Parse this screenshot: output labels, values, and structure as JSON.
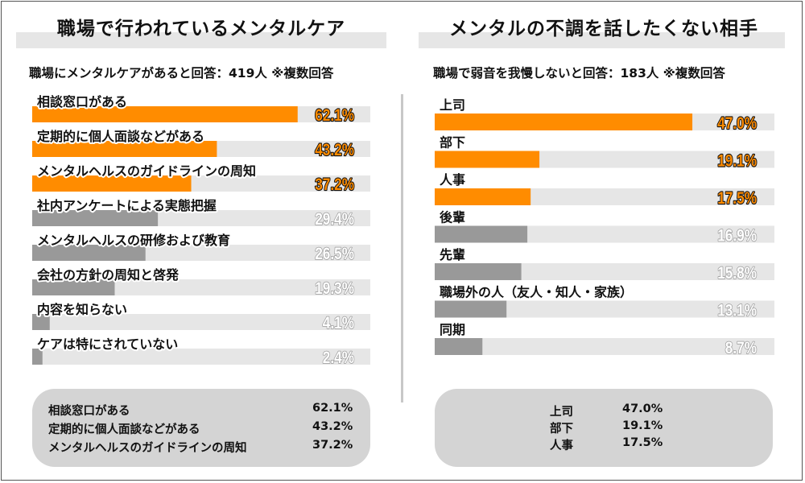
{
  "colors": {
    "highlight": "#ff8c00",
    "bar_gray": "#999999",
    "track": "#e6e6e6",
    "value_orange_fill": "#ff8c00",
    "value_gray_fill": "#ffffff",
    "value_gray_stroke": "#9a9a9a"
  },
  "chart_data": [
    {
      "type": "bar",
      "orientation": "horizontal",
      "title": "職場で行われているメンタルケア",
      "subtitle": "職場にメンタルケアがあると回答：419人 ※複数回答",
      "unit": "%",
      "xlim": [
        0,
        100
      ],
      "categories": [
        "相談窓口がある",
        "定期的に個人面談などがある",
        "メンタルヘルスのガイドラインの周知",
        "社内アンケートによる実態把握",
        "メンタルヘルスの研修および教育",
        "会社の方針の周知と啓発",
        "内容を知らない",
        "ケアは特にされていない"
      ],
      "values": [
        62.1,
        43.2,
        37.2,
        29.4,
        26.5,
        19.3,
        4.1,
        2.4
      ],
      "value_labels": [
        "62.1%",
        "43.2%",
        "37.2%",
        "29.4%",
        "26.5%",
        "19.3%",
        "4.1%",
        "2.4%"
      ],
      "highlighted": [
        true,
        true,
        true,
        false,
        false,
        false,
        false,
        false
      ]
    },
    {
      "type": "bar",
      "orientation": "horizontal",
      "title": "メンタルの不調を話したくない相手",
      "subtitle": "職場で弱音を我慢しないと回答：183人 ※複数回答",
      "unit": "%",
      "xlim": [
        0,
        100
      ],
      "categories": [
        "上司",
        "部下",
        "人事",
        "後輩",
        "先輩",
        "職場外の人（友人・知人・家族）",
        "同期"
      ],
      "values": [
        47.0,
        19.1,
        17.5,
        16.9,
        15.8,
        13.1,
        8.7
      ],
      "value_labels": [
        "47.0%",
        "19.1%",
        "17.5%",
        "16.9%",
        "15.8%",
        "13.1%",
        "8.7%"
      ],
      "highlighted": [
        true,
        true,
        true,
        false,
        false,
        false,
        false
      ]
    }
  ],
  "left_summary": [
    {
      "label": "相談窓口がある",
      "value": "62.1%"
    },
    {
      "label": "定期的に個人面談などがある",
      "value": "43.2%"
    },
    {
      "label": "メンタルヘルスのガイドラインの周知",
      "value": "37.2%"
    }
  ],
  "right_summary": [
    {
      "label": "上司",
      "value": "47.0%"
    },
    {
      "label": "部下",
      "value": "19.1%"
    },
    {
      "label": "人事",
      "value": "17.5%"
    }
  ]
}
